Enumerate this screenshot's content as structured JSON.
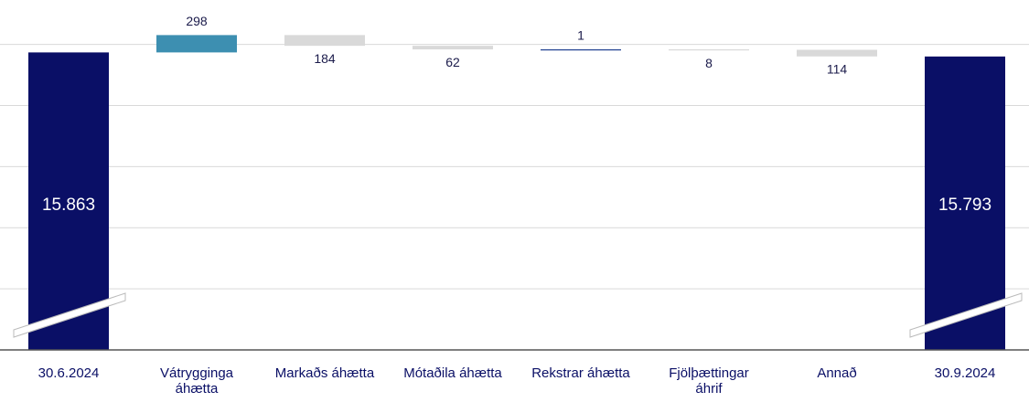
{
  "chart_data": {
    "type": "waterfall",
    "categories": [
      "30.6.2024",
      "Vátrygginga áhætta",
      "Markaðs áhætta",
      "Mótaðila áhætta",
      "Rekstrar áhætta",
      "Fjölþættingar áhrif",
      "Annað",
      "30.9.2024"
    ],
    "values": [
      15863,
      298,
      -184,
      -62,
      1,
      -8,
      -114,
      15793
    ],
    "value_labels": [
      "15.863",
      "298",
      "184",
      "62",
      "1",
      "8",
      "114",
      "15.793"
    ],
    "colors": [
      "#0a0f66",
      "#3d8fb1",
      "#d9d9d9",
      "#d9d9d9",
      "#1f3f8f",
      "#d9d9d9",
      "#d9d9d9",
      "#0a0f66"
    ],
    "ylim": [
      10750,
      16450
    ],
    "yticks": [
      11800,
      12850,
      13900,
      14950,
      16000
    ],
    "grid": true
  }
}
